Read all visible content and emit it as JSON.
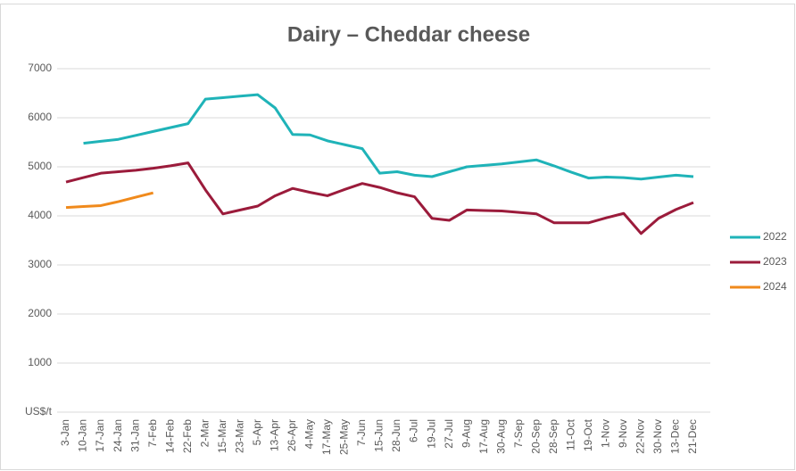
{
  "chart_data": {
    "type": "line",
    "title": "Dairy – Cheddar cheese",
    "categories": [
      "3-Jan",
      "10-Jan",
      "17-Jan",
      "24-Jan",
      "31-Jan",
      "7-Feb",
      "14-Feb",
      "22-Feb",
      "2-Mar",
      "15-Mar",
      "23-Mar",
      "5-Apr",
      "13-Apr",
      "26-Apr",
      "4-May",
      "17-May",
      "25-May",
      "7-Jun",
      "15-Jun",
      "28-Jun",
      "6-Jul",
      "19-Jul",
      "27-Jul",
      "9-Aug",
      "17-Aug",
      "30-Aug",
      "7-Sep",
      "20-Sep",
      "28-Sep",
      "11-Oct",
      "19-Oct",
      "1-Nov",
      "9-Nov",
      "22-Nov",
      "30-Nov",
      "13-Dec",
      "21-Dec"
    ],
    "series": [
      {
        "name": "2022",
        "color": "#1fb3b8",
        "values": [
          null,
          5480,
          5520,
          5560,
          5640,
          5720,
          5800,
          5880,
          6380,
          6410,
          6440,
          6470,
          6200,
          5660,
          5650,
          5530,
          5450,
          5370,
          4870,
          4900,
          4830,
          4800,
          4900,
          5000,
          5030,
          5060,
          5100,
          5140,
          5020,
          4890,
          4770,
          4790,
          4780,
          4750,
          4790,
          4830,
          4800
        ]
      },
      {
        "name": "2023",
        "color": "#9b1b3b",
        "values": [
          4690,
          4780,
          4870,
          4900,
          4930,
          4970,
          5020,
          5080,
          4530,
          4040,
          4120,
          4200,
          4410,
          4560,
          4480,
          4410,
          4540,
          4660,
          4580,
          4470,
          4390,
          3950,
          3910,
          4120,
          4110,
          4100,
          4070,
          4040,
          3860,
          3860,
          3860,
          3960,
          4050,
          3640,
          3950,
          4130,
          4270
        ]
      },
      {
        "name": "2024",
        "color": "#f08a1c",
        "values": [
          4170,
          4190,
          4210,
          4290,
          4380,
          4470,
          null,
          null,
          null,
          null,
          null,
          null,
          null,
          null,
          null,
          null,
          null,
          null,
          null,
          null,
          null,
          null,
          null,
          null,
          null,
          null,
          null,
          null,
          null,
          null,
          null,
          null,
          null,
          null,
          null,
          null,
          null
        ]
      }
    ],
    "ylim": [
      0,
      7000
    ],
    "yticks": [
      {
        "value": 0,
        "label": "US$/t"
      },
      1000,
      2000,
      3000,
      4000,
      5000,
      6000,
      7000
    ],
    "grid": true,
    "legend": "right"
  }
}
